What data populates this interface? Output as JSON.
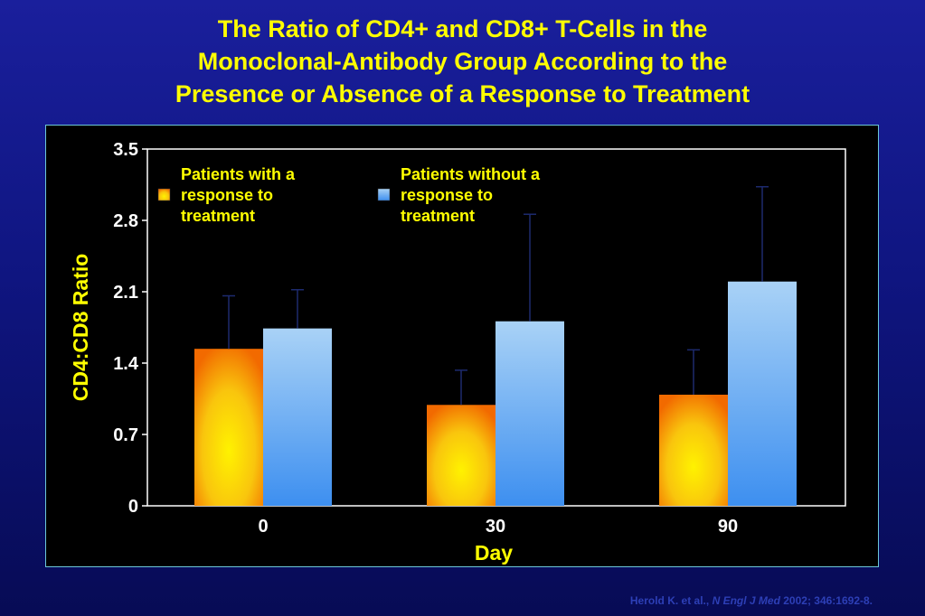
{
  "title_lines": [
    "The Ratio of CD4+ and CD8+ T-Cells in the",
    "Monoclonal-Antibody Group According to the",
    "Presence or Absence of a Response to Treatment"
  ],
  "citation": {
    "authors": "Herold K. et al.,",
    "journal": "N Engl J Med",
    "details": "2002; 346:1692-8."
  },
  "colors": {
    "title": "#ffff00",
    "responders": "#f7a21a",
    "non_responders": "#5aa8f0",
    "panel_border": "#6cc6d8"
  },
  "chart_data": {
    "type": "bar",
    "title": "",
    "xlabel": "Day",
    "ylabel": "CD4:CD8 Ratio",
    "ylim": [
      0,
      3.5
    ],
    "yticks": [
      "3.5",
      "2.8",
      "2.1",
      "1.4",
      "0.7",
      "0"
    ],
    "categories": [
      "0",
      "30",
      "90"
    ],
    "grid": false,
    "legend_placement": "top-left",
    "series": [
      {
        "name_lines": [
          "Patients with a",
          "response to",
          "treatment"
        ],
        "values": [
          1.54,
          0.99,
          1.09
        ],
        "error_upper": [
          2.06,
          1.33,
          1.53
        ]
      },
      {
        "name_lines": [
          "Patients without a",
          "response to",
          "treatment"
        ],
        "values": [
          1.74,
          1.81,
          2.2
        ],
        "error_upper": [
          2.12,
          2.86,
          3.13
        ]
      }
    ]
  }
}
